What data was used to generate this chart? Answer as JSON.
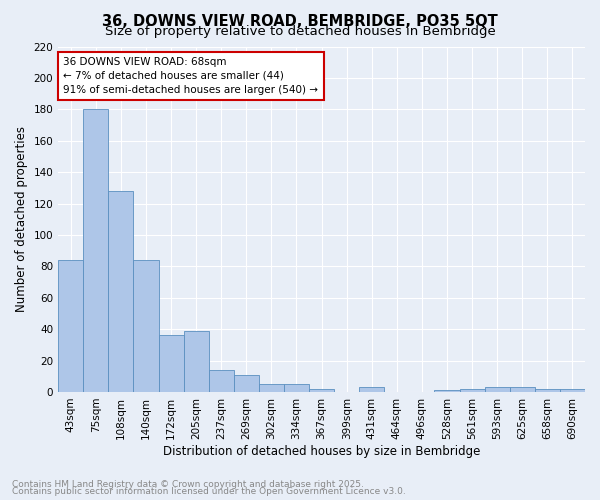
{
  "title_line1": "36, DOWNS VIEW ROAD, BEMBRIDGE, PO35 5QT",
  "title_line2": "Size of property relative to detached houses in Bembridge",
  "xlabel": "Distribution of detached houses by size in Bembridge",
  "ylabel": "Number of detached properties",
  "categories": [
    "43sqm",
    "75sqm",
    "108sqm",
    "140sqm",
    "172sqm",
    "205sqm",
    "237sqm",
    "269sqm",
    "302sqm",
    "334sqm",
    "367sqm",
    "399sqm",
    "431sqm",
    "464sqm",
    "496sqm",
    "528sqm",
    "561sqm",
    "593sqm",
    "625sqm",
    "658sqm",
    "690sqm"
  ],
  "values": [
    84,
    180,
    128,
    84,
    36,
    39,
    14,
    11,
    5,
    5,
    2,
    0,
    3,
    0,
    0,
    1,
    2,
    3,
    3,
    2,
    2
  ],
  "bar_color": "#aec6e8",
  "bar_edge_color": "#5a8fc0",
  "background_color": "#e8eef7",
  "annotation_text": "36 DOWNS VIEW ROAD: 68sqm\n← 7% of detached houses are smaller (44)\n91% of semi-detached houses are larger (540) →",
  "annotation_box_color": "white",
  "annotation_box_edge": "#cc0000",
  "ylim": [
    0,
    220
  ],
  "yticks": [
    0,
    20,
    40,
    60,
    80,
    100,
    120,
    140,
    160,
    180,
    200,
    220
  ],
  "footer_line1": "Contains HM Land Registry data © Crown copyright and database right 2025.",
  "footer_line2": "Contains public sector information licensed under the Open Government Licence v3.0.",
  "title_fontsize": 10.5,
  "subtitle_fontsize": 9.5,
  "axis_label_fontsize": 8.5,
  "tick_fontsize": 7.5,
  "annotation_fontsize": 7.5,
  "footer_fontsize": 6.5
}
